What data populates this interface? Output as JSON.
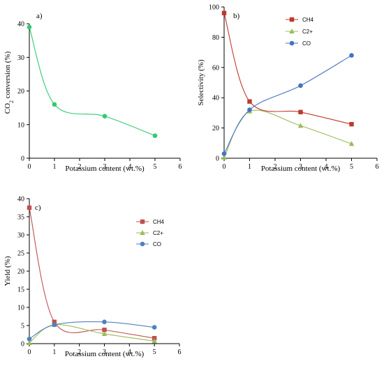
{
  "chart_data": [
    {
      "type": "line",
      "panel_label": "a)",
      "x": [
        0,
        1,
        3,
        5
      ],
      "series": [
        {
          "values": [
            39,
            16,
            12.5,
            6.7
          ],
          "color": "#2ecc71",
          "marker": "circle"
        }
      ],
      "xlabel": "Potassium content (wt.%)",
      "ylabel": "CO2 conversion (%)",
      "xlim": [
        0,
        6
      ],
      "ylim": [
        0,
        45
      ],
      "xticks": [
        0,
        1,
        2,
        3,
        4,
        5,
        6
      ],
      "yticks": [
        0,
        10,
        20,
        30,
        40
      ],
      "legend": "none"
    },
    {
      "type": "line",
      "panel_label": "b)",
      "x": [
        0,
        1,
        3,
        5
      ],
      "series": [
        {
          "name": "CH4",
          "values": [
            96,
            37.5,
            30.5,
            22.5
          ],
          "color": "#c0392b",
          "marker": "square"
        },
        {
          "name": "C2+",
          "values": [
            0.5,
            31,
            21.5,
            9.5
          ],
          "color": "#9bbb59",
          "marker": "triangle"
        },
        {
          "name": "CO",
          "values": [
            3,
            32,
            48,
            68
          ],
          "color": "#4472c4",
          "marker": "circle"
        }
      ],
      "xlabel": "Potassium content (wt.%)",
      "ylabel": "Selectivity (%)",
      "xlim": [
        0,
        6
      ],
      "ylim": [
        0,
        100
      ],
      "xticks": [
        0,
        1,
        2,
        3,
        4,
        5,
        6
      ],
      "yticks": [
        0,
        20,
        40,
        60,
        80,
        100
      ],
      "legend": "top-center"
    },
    {
      "type": "line",
      "panel_label": "c)",
      "x": [
        0,
        1,
        3,
        5
      ],
      "series": [
        {
          "name": "CH4",
          "values": [
            37.5,
            6,
            3.8,
            1.5
          ],
          "color": "#c0504d",
          "marker": "square"
        },
        {
          "name": "C2+",
          "values": [
            0.2,
            5.2,
            2.7,
            0.7
          ],
          "color": "#9bbb59",
          "marker": "triangle"
        },
        {
          "name": "CO",
          "values": [
            1.3,
            5.2,
            6,
            4.5
          ],
          "color": "#4f81bd",
          "marker": "circle"
        }
      ],
      "xlabel": "Potassium content (wt.%)",
      "ylabel": "Yield (%)",
      "xlim": [
        0,
        6
      ],
      "ylim": [
        0,
        40
      ],
      "xticks": [
        0,
        1,
        2,
        3,
        4,
        5,
        6
      ],
      "yticks": [
        0,
        5,
        10,
        15,
        20,
        25,
        30,
        35,
        40
      ],
      "legend": "top-right"
    }
  ]
}
